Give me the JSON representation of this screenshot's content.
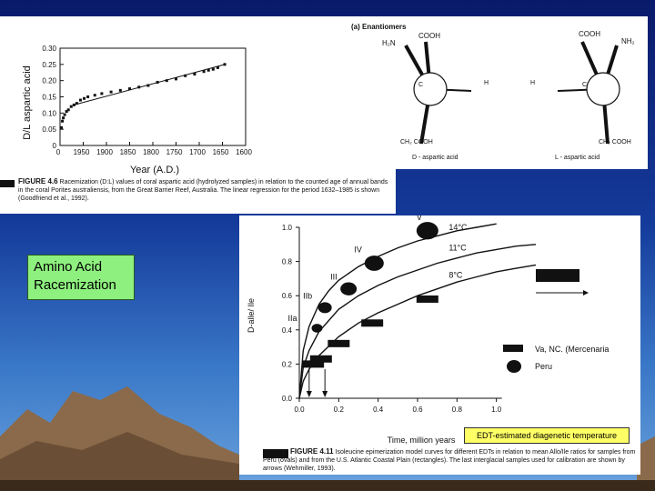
{
  "slide": {
    "label": "Amino Acid Racemization"
  },
  "chart1": {
    "ylabel": "D/L aspartic acid",
    "xlabel": "Year (A.D.)",
    "yticks": [
      "0.30",
      "0.25",
      "0.20",
      "0.15",
      "0.10",
      "0.05",
      "0"
    ],
    "xticks": [
      "0",
      "1950",
      "1900",
      "1850",
      "1800",
      "1750",
      "1700",
      "1650",
      "1600"
    ],
    "figure_label": "FIGURE 4.6",
    "caption": "Racemization (D:L) values of coral aspartic acid (hydrolyzed samples) in relation to the counted age of annual bands in the coral Porites australiensis, from the Great Barrier Reef, Australia. The linear regression for the period 1632–1985 is shown (Goodfriend et al., 1992)."
  },
  "chart2": {
    "title": "(a) Enantiomers",
    "left_groups": [
      "H₂N",
      "COOH",
      "C",
      "H",
      "CH₂ COOH"
    ],
    "left_name": "D - aspartic acid",
    "right_groups": [
      "COOH",
      "NH₂",
      "H",
      "C",
      "CH₂ COOH"
    ],
    "right_name": "L - aspartic acid"
  },
  "chart3": {
    "ylabel": "D-alle/ Ile",
    "xlabel": "Time, million years",
    "yticks": [
      "1.0",
      "0.8",
      "0.6",
      "0.4",
      "0.2",
      "0.0"
    ],
    "xticks": [
      "0.0",
      "0.2",
      "0.4",
      "0.6",
      "0.8",
      "1.0"
    ],
    "stage_labels": [
      "V",
      "IV",
      "III",
      "IIb",
      "IIa"
    ],
    "curve_labels": [
      "14°C",
      "11°C",
      "8°C"
    ],
    "legend": [
      "Va, NC. (Mercenaria",
      "Peru"
    ],
    "figure_label": "FIGURE 4.11",
    "caption": "Isoleucine epimerization model curves for different EDTs in relation to mean Allo/Ile ratios for samples from Peru (ovals) and from the U.S. Atlantic Coastal Plain (rectangles). The last interglacial samples used for calibration are shown by arrows (Wehmiller, 1993).",
    "annotation": "EDT-estimated diagenetic temperature"
  },
  "chart_data": [
    {
      "type": "scatter",
      "title": "",
      "xlabel": "Year (A.D.)",
      "ylabel": "D/L aspartic acid",
      "x_axis": "years before 1985, labeled by year",
      "xlim": [
        0,
        400
      ],
      "ylim": [
        0,
        0.3
      ],
      "series": [
        {
          "x": [
            3,
            5,
            7,
            10,
            14,
            18,
            24,
            30,
            36,
            44,
            52,
            60,
            75,
            90,
            110,
            130,
            150,
            170,
            190,
            210,
            230,
            250,
            270,
            290,
            310,
            320,
            330,
            340,
            355
          ],
          "y": [
            0.055,
            0.075,
            0.085,
            0.095,
            0.105,
            0.11,
            0.12,
            0.125,
            0.13,
            0.14,
            0.145,
            0.15,
            0.155,
            0.16,
            0.165,
            0.17,
            0.175,
            0.18,
            0.185,
            0.195,
            0.2,
            0.205,
            0.215,
            0.22,
            0.228,
            0.232,
            0.235,
            0.24,
            0.25
          ]
        }
      ],
      "regression_line": {
        "x": [
          30,
          355
        ],
        "y": [
          0.125,
          0.25
        ]
      },
      "grid": false
    },
    {
      "type": "line",
      "title": "",
      "xlabel": "Time, million years",
      "ylabel": "D-alle/ Ile",
      "xlim": [
        0,
        1.2
      ],
      "ylim": [
        0,
        1.0
      ],
      "series": [
        {
          "name": "14°C",
          "x": [
            0,
            0.02,
            0.05,
            0.1,
            0.15,
            0.2,
            0.3,
            0.4,
            0.5,
            0.6,
            0.7,
            0.8,
            0.9,
            1.0
          ],
          "y": [
            0,
            0.28,
            0.42,
            0.55,
            0.63,
            0.69,
            0.77,
            0.83,
            0.88,
            0.92,
            0.95,
            0.98,
            1.0,
            1.02
          ]
        },
        {
          "name": "11°C",
          "x": [
            0,
            0.02,
            0.05,
            0.1,
            0.2,
            0.3,
            0.4,
            0.5,
            0.6,
            0.7,
            0.8,
            0.9,
            1.0,
            1.1,
            1.2
          ],
          "y": [
            0,
            0.18,
            0.28,
            0.39,
            0.52,
            0.6,
            0.66,
            0.71,
            0.75,
            0.79,
            0.82,
            0.85,
            0.87,
            0.89,
            0.9
          ]
        },
        {
          "name": "8°C",
          "x": [
            0,
            0.02,
            0.05,
            0.1,
            0.2,
            0.3,
            0.4,
            0.5,
            0.6,
            0.7,
            0.8,
            0.9,
            1.0,
            1.1,
            1.2
          ],
          "y": [
            0,
            0.1,
            0.17,
            0.25,
            0.36,
            0.44,
            0.5,
            0.55,
            0.6,
            0.64,
            0.68,
            0.71,
            0.74,
            0.76,
            0.78
          ]
        }
      ],
      "ovals": [
        {
          "label": "IIa",
          "x": 0.09,
          "y": 0.41
        },
        {
          "label": "IIb",
          "x": 0.13,
          "y": 0.53
        },
        {
          "label": "III",
          "x": 0.25,
          "y": 0.64
        },
        {
          "label": "IV",
          "x": 0.38,
          "y": 0.79
        },
        {
          "label": "V",
          "x": 0.65,
          "y": 0.98
        }
      ],
      "rectangles": [
        {
          "x": 0.07,
          "y": 0.2
        },
        {
          "x": 0.11,
          "y": 0.23
        },
        {
          "x": 0.2,
          "y": 0.32
        },
        {
          "x": 0.37,
          "y": 0.44
        },
        {
          "x": 0.65,
          "y": 0.58
        }
      ],
      "arrows_x": [
        0.05,
        0.13
      ],
      "grid": false
    }
  ]
}
